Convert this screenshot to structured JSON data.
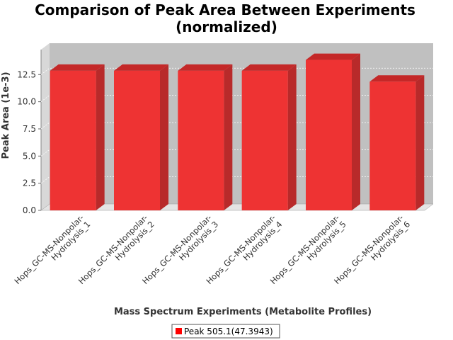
{
  "chart_data": {
    "type": "bar",
    "title_line1": "Comparison of Peak Area Between Experiments",
    "title_line2": "(normalized)",
    "xlabel": "Mass Spectrum Experiments (Metabolite Profiles)",
    "ylabel": "Peak Area (1e-3)",
    "categories": [
      [
        "Hops_GC-MS-Nonpolar-",
        "Hydrolysis_1"
      ],
      [
        "Hops_GC-MS-Nonpolar-",
        "Hydrolysis_2"
      ],
      [
        "Hops_GC-MS-Nonpolar-",
        "Hydrolysis_3"
      ],
      [
        "Hops_GC-MS-Nonpolar-",
        "Hydrolysis_4"
      ],
      [
        "Hops_GC-MS-Nonpolar-",
        "Hydrolysis_5"
      ],
      [
        "Hops_GC-MS-Nonpolar-",
        "Hydrolysis_6"
      ]
    ],
    "series": [
      {
        "name": "Peak 505.1(47.3943)",
        "values": [
          12.85,
          12.85,
          12.85,
          12.85,
          13.85,
          11.85
        ]
      }
    ],
    "yticks": [
      "0.0",
      "2.5",
      "5.0",
      "7.5",
      "10.0",
      "12.5"
    ],
    "ytick_values": [
      0,
      2.5,
      5,
      7.5,
      10,
      12.5
    ],
    "ylim": [
      0,
      14.8
    ],
    "grid": true,
    "legend_position": "bottom",
    "colors": {
      "bar_front": "#ee3333",
      "bar_top": "#c42828",
      "bar_side": "#b82a2a",
      "plot_back": "#c0c0c0",
      "plot_side": "#d8d8d8",
      "plot_floor": "#e4e4e4",
      "legend_swatch": "#ff0000"
    }
  }
}
